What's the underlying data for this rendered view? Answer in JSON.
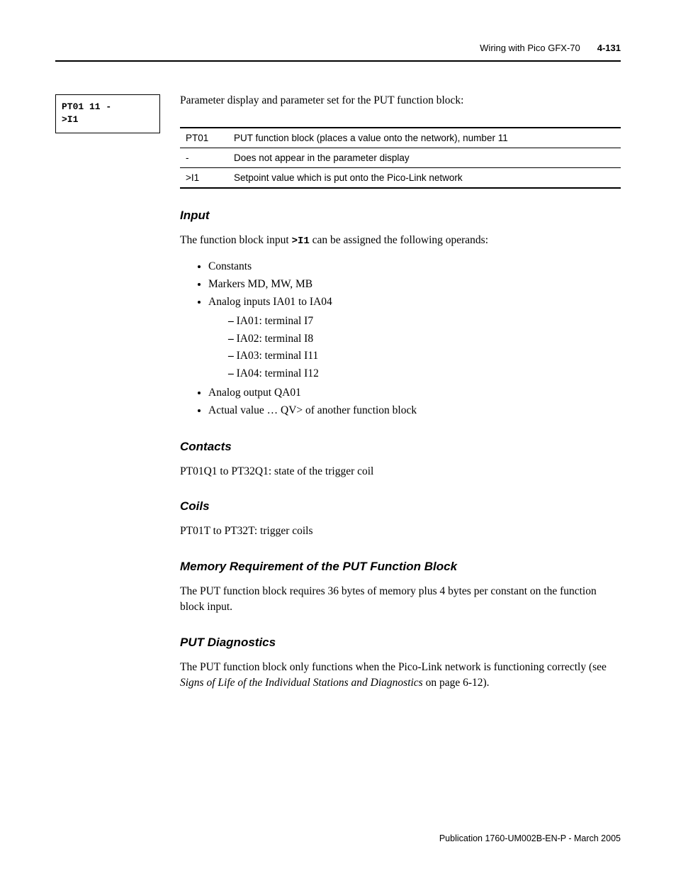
{
  "header": {
    "title": "Wiring with Pico GFX-70",
    "pageno": "4-131"
  },
  "aside": {
    "line1": "PT01 11        -",
    "line2": ">I1"
  },
  "intro": "Parameter display and parameter set for the PUT function block:",
  "table": {
    "rows": [
      {
        "k": "PT01",
        "v": "PUT function block (places a value onto the network), number 11"
      },
      {
        "k": "-",
        "v": "Does not appear in the parameter display"
      },
      {
        "k": ">I1",
        "v": "Setpoint value which is put onto the Pico-Link network"
      }
    ]
  },
  "input": {
    "heading": "Input",
    "para_a": "The function block input ",
    "mono": ">I1",
    "para_b": " can be assigned the following operands:",
    "bullets": [
      {
        "t": "Constants"
      },
      {
        "t": "Markers MD, MW, MB"
      },
      {
        "t": "Analog inputs IA01 to IA04",
        "sub": [
          "IA01: terminal I7",
          "IA02: terminal I8",
          "IA03: terminal I11",
          "IA04: terminal I12"
        ]
      },
      {
        "t": "Analog output QA01"
      },
      {
        "t": "Actual value … QV> of another function block"
      }
    ]
  },
  "contacts": {
    "heading": "Contacts",
    "para": "PT01Q1 to PT32Q1: state of the trigger coil"
  },
  "coils": {
    "heading": "Coils",
    "para": "PT01T to PT32T: trigger coils"
  },
  "mem": {
    "heading": "Memory Requirement of the PUT Function Block",
    "para": "The PUT function block requires 36 bytes of memory plus 4 bytes per constant on the function block input."
  },
  "diag": {
    "heading": "PUT Diagnostics",
    "para_a": "The PUT function block only functions when the Pico-Link network is functioning correctly (see ",
    "ital": "Signs of Life of the Individual Stations and Diagnostics",
    "para_b": " on page 6-12)."
  },
  "footer": "Publication 1760-UM002B-EN-P - March 2005"
}
